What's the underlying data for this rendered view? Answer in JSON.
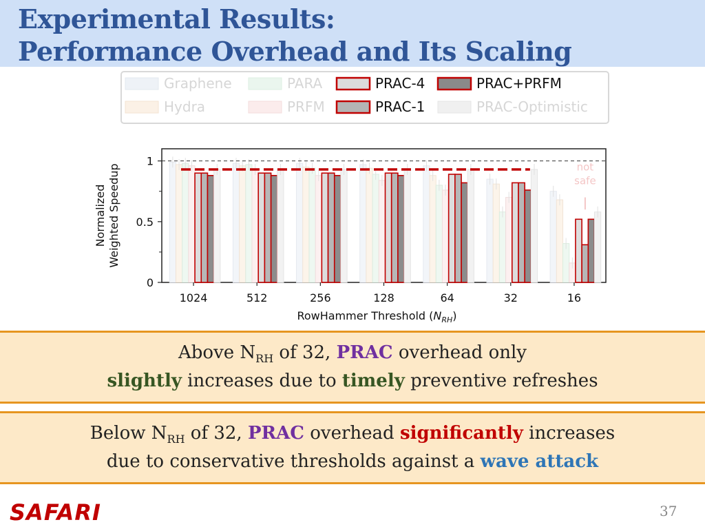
{
  "slide": {
    "title_line1": "Experimental Results:",
    "title_line2": "Performance Overhead and Its Scaling",
    "page_number": "37",
    "logo_text": "SAFARI"
  },
  "box1": {
    "p1": "Above N",
    "p1_sub": "RH",
    "p2": " of 32, ",
    "prac": "PRAC",
    "p3": " overhead only",
    "slightly": "slightly",
    "p4": " increases due to ",
    "timely": "timely",
    "p5": " preventive refreshes"
  },
  "box2": {
    "p1": "Below N",
    "p1_sub": "RH",
    "p2": " of 32, ",
    "prac": "PRAC",
    "p3": " overhead ",
    "significantly": "significantly",
    "p4": " increases",
    "p5": "due to conservative thresholds against a ",
    "wave": "wave attack"
  },
  "colors": {
    "accent_blue": "#2f5597",
    "prac_red": "#c00000",
    "box_bg": "#fde9c8",
    "box_border": "#e69520"
  },
  "chart_data": {
    "type": "bar",
    "xlabel": "RowHammer Threshold (N_RH)",
    "xlabel_main": "RowHammer Threshold (",
    "xlabel_var": "N",
    "xlabel_sub": "RH",
    "xlabel_end": ")",
    "ylabel_line1": "Normalized",
    "ylabel_line2": "Weighted Speedup",
    "ylim": [
      0,
      1.1
    ],
    "yticks": [
      0,
      0.5,
      1
    ],
    "ytick_labels": [
      "0",
      "0.5",
      "1"
    ],
    "categories": [
      "1024",
      "512",
      "256",
      "128",
      "64",
      "32",
      "16"
    ],
    "reference_line": 1,
    "prac_optimistic_level": 0.93,
    "annotation": "not safe",
    "annotation_line1": "not",
    "annotation_line2": "safe",
    "series": [
      {
        "name": "Graphene",
        "faded": true,
        "values": [
          0.99,
          0.98,
          0.98,
          0.97,
          0.96,
          0.85,
          0.75
        ]
      },
      {
        "name": "Hydra",
        "faded": true,
        "values": [
          0.97,
          0.96,
          0.95,
          0.94,
          0.88,
          0.81,
          0.68
        ]
      },
      {
        "name": "PARA",
        "faded": true,
        "values": [
          0.98,
          0.97,
          0.94,
          0.89,
          0.8,
          0.58,
          0.32
        ]
      },
      {
        "name": "PRFM",
        "faded": true,
        "values": [
          0.96,
          0.93,
          0.88,
          0.84,
          0.76,
          0.7,
          0.16
        ]
      },
      {
        "name": "PRAC-4",
        "faded": false,
        "values": [
          0.9,
          0.9,
          0.9,
          0.9,
          0.89,
          0.82,
          0.52
        ]
      },
      {
        "name": "PRAC-1",
        "faded": false,
        "values": [
          0.9,
          0.9,
          0.9,
          0.9,
          0.89,
          0.82,
          0.31
        ]
      },
      {
        "name": "PRAC+PRFM",
        "faded": false,
        "values": [
          0.88,
          0.88,
          0.88,
          0.88,
          0.82,
          0.76,
          0.52
        ]
      },
      {
        "name": "PRAC-Optimistic",
        "faded": true,
        "values": [
          0.93,
          0.93,
          0.93,
          0.93,
          0.93,
          0.93,
          0.58
        ]
      }
    ],
    "legend": {
      "placement": "top",
      "entries": [
        {
          "label": "Graphene",
          "fill": "#eef2f7",
          "stroke": "#e3e8ef",
          "faded": true
        },
        {
          "label": "PARA",
          "fill": "#eaf6ee",
          "stroke": "#dcefe2",
          "faded": true
        },
        {
          "label": "PRAC-4",
          "fill": "#dcdcdc",
          "stroke": "#c00000",
          "faded": false
        },
        {
          "label": "PRAC+PRFM",
          "fill": "#8a8a8a",
          "stroke": "#c00000",
          "faded": false
        },
        {
          "label": "Hydra",
          "fill": "#fbf1e6",
          "stroke": "#f3e3d2",
          "faded": true
        },
        {
          "label": "PRFM",
          "fill": "#fbecec",
          "stroke": "#f3dcdc",
          "faded": true
        },
        {
          "label": "PRAC-1",
          "fill": "#b4b4b4",
          "stroke": "#c00000",
          "faded": false
        },
        {
          "label": "PRAC-Optimistic",
          "fill": "#f0f0f0",
          "stroke": "#e6e6e6",
          "faded": true
        }
      ]
    }
  }
}
